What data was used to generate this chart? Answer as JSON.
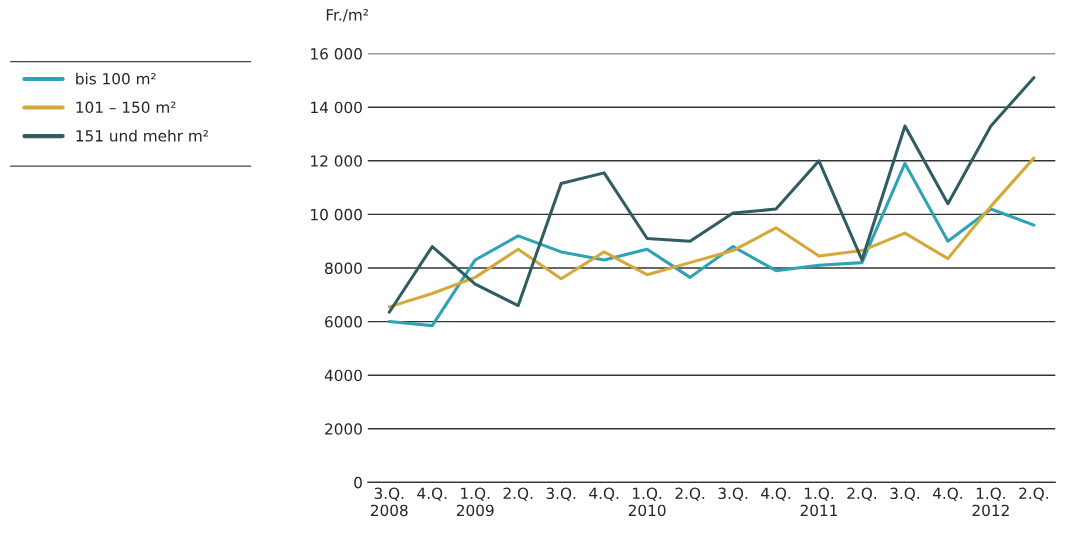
{
  "chart_data": {
    "type": "line",
    "ylabel": "Fr./m²",
    "categories": [
      "3.Q.\n2008",
      "4.Q.",
      "1.Q.\n2009",
      "2.Q.",
      "3.Q.",
      "4.Q.",
      "1.Q.\n2010",
      "2.Q.",
      "3.Q.",
      "4.Q.",
      "1.Q.\n2011",
      "2.Q.",
      "3.Q.",
      "4.Q.",
      "1.Q.\n2012",
      "2.Q."
    ],
    "series": [
      {
        "name": "bis 100 m²",
        "color": "#2ea3b5",
        "values": [
          6000,
          5850,
          8300,
          9200,
          8600,
          8300,
          8700,
          7650,
          8800,
          7900,
          8100,
          8200,
          11900,
          9000,
          10200,
          9600
        ]
      },
      {
        "name": "101 – 150 m²",
        "color": "#d4a93a",
        "values": [
          6550,
          7050,
          7650,
          8700,
          7600,
          8600,
          7750,
          8200,
          8650,
          9500,
          8450,
          8650,
          9300,
          8350,
          10300,
          12100
        ]
      },
      {
        "name": "151 und mehr m²",
        "color": "#2f5d62",
        "values": [
          6350,
          8800,
          7400,
          6600,
          11150,
          11550,
          9100,
          9000,
          10050,
          10200,
          12000,
          8300,
          13300,
          10400,
          13300,
          15100
        ]
      }
    ],
    "ylim": [
      0,
      16000
    ],
    "yticks": [
      0,
      2000,
      4000,
      6000,
      8000,
      {
        "value": 10000,
        "label": "10 000"
      },
      {
        "value": 12000,
        "label": "12 000"
      },
      {
        "value": 14000,
        "label": "14 000"
      },
      {
        "value": 16000,
        "label": "16 000"
      }
    ],
    "grid": "y",
    "legend": "top left",
    "marker": "none",
    "line_style": "solid"
  }
}
